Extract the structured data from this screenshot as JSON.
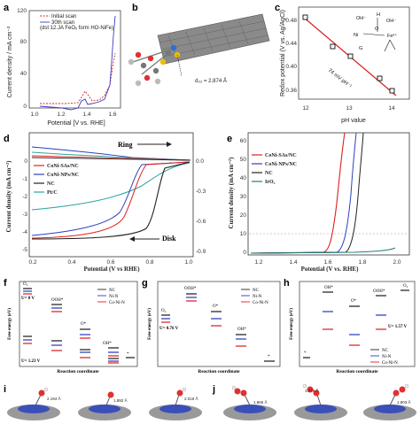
{
  "panels": {
    "a": {
      "letter": "a",
      "ylabel": "Current density / mA cm⁻²",
      "xlabel": "Potential [V vs. RHE]",
      "yticks": [
        "0",
        "40",
        "80",
        "120"
      ],
      "xticks": [
        "1.0",
        "1.2",
        "1.4",
        "1.6"
      ],
      "legend": [
        "Initial scan",
        "30th scan"
      ],
      "note": "(dst 12.JA FeOₓ form HO-NiFe)",
      "colors": {
        "initial": "#d62728",
        "scan30": "#3b3bbf"
      }
    },
    "b": {
      "letter": "b",
      "distance_label": "d₀₂ = 2.874 Å"
    },
    "c": {
      "letter": "c",
      "ylabel": "Redox potential (V vs. Ag/AgCl)",
      "xlabel": "pH value",
      "yticks": [
        "0.36",
        "0.40",
        "0.44",
        "0.48"
      ],
      "xticks": [
        "12",
        "13",
        "14"
      ],
      "slope_label": "74 mV pH⁻¹",
      "struct": {
        "oh1": "OH⁻",
        "h": "H",
        "oh2": "OH⁻",
        "o": "O",
        "g": "G",
        "ni": "Ni",
        "fe": "Fe³⁺",
        "nip": "3+"
      }
    },
    "d": {
      "letter": "d",
      "ylabel": "Current density (mA cm⁻²)",
      "xlabel": "Potential (V vs RHE)",
      "yticks": [
        "0",
        "-1",
        "-2",
        "-3",
        "-4",
        "-5"
      ],
      "xticks": [
        "0.2",
        "0.4",
        "0.6",
        "0.8",
        "1.0"
      ],
      "right_ticks": [
        "0.0",
        "-0.3",
        "-0.6",
        "-0.9"
      ],
      "ring": "Ring",
      "disk": "Disk",
      "legend": [
        "CoNi-SAs/NC",
        "CoNi-NPs/NC",
        "NC",
        "Pt/C"
      ]
    },
    "e": {
      "letter": "e",
      "ylabel": "Current density (mA cm⁻²)",
      "xlabel": "Potential (V vs. RHE)",
      "yticks": [
        "0",
        "10",
        "20",
        "30",
        "40",
        "50",
        "60"
      ],
      "xticks": [
        "1.2",
        "1.4",
        "1.6",
        "1.8",
        "2.0"
      ],
      "legend": [
        "CoNi-SAs/NC",
        "CoNi-NPs/NC",
        "NC",
        "IrO₂"
      ]
    },
    "f": {
      "letter": "f",
      "ylabel": "Free energy (eV)",
      "xlabel": "Reaction coordinate",
      "labels": {
        "o2": "O₂",
        "ooh": "OOH*",
        "o": "O*",
        "oh": "OH*",
        "u0": "U= 0 V",
        "u123": "U= 1.23 V",
        "star": "*"
      },
      "legend": [
        "NC",
        "Ni-N",
        "Co-Ni-N"
      ]
    },
    "g": {
      "letter": "g",
      "ylabel": "Free energy (eV)",
      "xlabel": "Reaction coordinate",
      "labels": {
        "o2": "O₂",
        "ooh": "OOH*",
        "o": "O*",
        "oh": "OH*",
        "u": "U= 0.76 V",
        "star": "*"
      },
      "legend": [
        "NC",
        "Ni-N",
        "Co-Ni-N"
      ]
    },
    "h": {
      "letter": "h",
      "ylabel": "Free energy (eV)",
      "xlabel": "Reaction coordinate",
      "labels": {
        "oh": "OH*",
        "o": "O*",
        "ooh": "OOH*",
        "o2": "O₂",
        "u": "U= 1.57 V",
        "star": "*"
      },
      "legend": [
        "NC",
        "Ni-N",
        "Co-Ni-N"
      ]
    },
    "i": {
      "letter": "i",
      "distances": [
        "2.194 Å",
        "1.892 Å",
        "2.018 Å"
      ]
    },
    "j": {
      "letter": "j",
      "distances": [
        "1.865 Å",
        "1.776 Å",
        "1.803 Å"
      ]
    }
  },
  "series_colors": {
    "CoNi-SAs/NC": "#222222",
    "CoNi-NPs/NC": "#e02020",
    "NC": "#2a3fbf",
    "Pt/C": "#2aa59a",
    "IrO2": "#1f7f7a"
  }
}
